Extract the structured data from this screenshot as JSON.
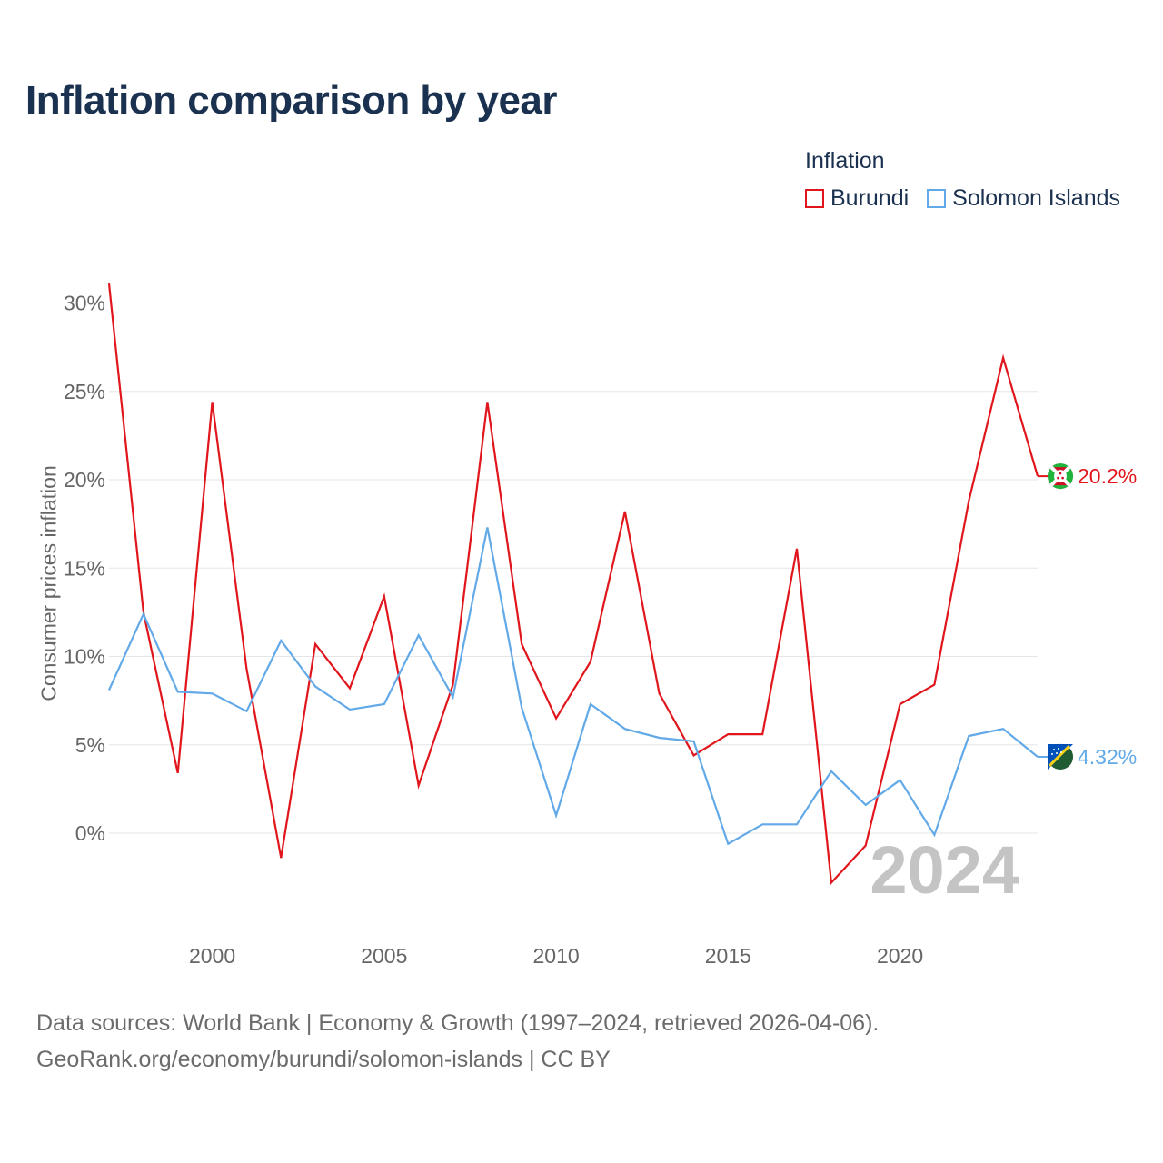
{
  "title": "Inflation comparison by year",
  "legend": {
    "title": "Inflation",
    "items": [
      {
        "label": "Burundi",
        "color": "#e0161c"
      },
      {
        "label": "Solomon Islands",
        "color": "#62a9e8"
      }
    ]
  },
  "footer": {
    "line1": "Data sources: World Bank | Economy & Growth (1997–2024, retrieved 2026-04-06).",
    "line2": "GeoRank.org/economy/burundi/solomon-islands | CC BY"
  },
  "chart_data": {
    "type": "line",
    "title": "Inflation comparison by year",
    "xlabel": "",
    "ylabel": "Consumer prices inflation",
    "x": [
      1997,
      1998,
      1999,
      2000,
      2001,
      2002,
      2003,
      2004,
      2005,
      2006,
      2007,
      2008,
      2009,
      2010,
      2011,
      2012,
      2013,
      2014,
      2015,
      2016,
      2017,
      2018,
      2019,
      2020,
      2021,
      2022,
      2023,
      2024
    ],
    "xticks": [
      2000,
      2005,
      2010,
      2015,
      2020
    ],
    "xtick_labels": [
      "2000",
      "2005",
      "2010",
      "2015",
      "2020"
    ],
    "yticks": [
      0,
      5,
      10,
      15,
      20,
      25,
      30
    ],
    "ytick_labels": [
      "0%",
      "5%",
      "10%",
      "15%",
      "20%",
      "25%",
      "30%"
    ],
    "xlim": [
      1997,
      2024
    ],
    "ylim": [
      -4.5,
      30
    ],
    "grid": true,
    "legend_position": "top-right",
    "watermark_year": "2024",
    "series": [
      {
        "name": "Burundi",
        "color": "#e0161c",
        "values": [
          31.1,
          12.5,
          3.4,
          24.4,
          9.3,
          -1.4,
          10.7,
          8.2,
          13.4,
          2.7,
          8.4,
          24.4,
          10.7,
          6.5,
          9.7,
          18.2,
          7.9,
          4.4,
          5.6,
          5.6,
          16.1,
          -2.8,
          -0.7,
          7.3,
          8.4,
          18.8,
          26.9,
          20.2
        ],
        "end_label": "20.2%"
      },
      {
        "name": "Solomon Islands",
        "color": "#62a9e8",
        "values": [
          8.1,
          12.4,
          8.0,
          7.9,
          6.9,
          10.9,
          8.3,
          7.0,
          7.3,
          11.2,
          7.7,
          17.3,
          7.1,
          1.0,
          7.3,
          5.9,
          5.4,
          5.2,
          -0.6,
          0.5,
          0.5,
          3.5,
          1.6,
          3.0,
          -0.1,
          5.5,
          5.9,
          4.32
        ],
        "end_label": "4.32%"
      }
    ]
  }
}
